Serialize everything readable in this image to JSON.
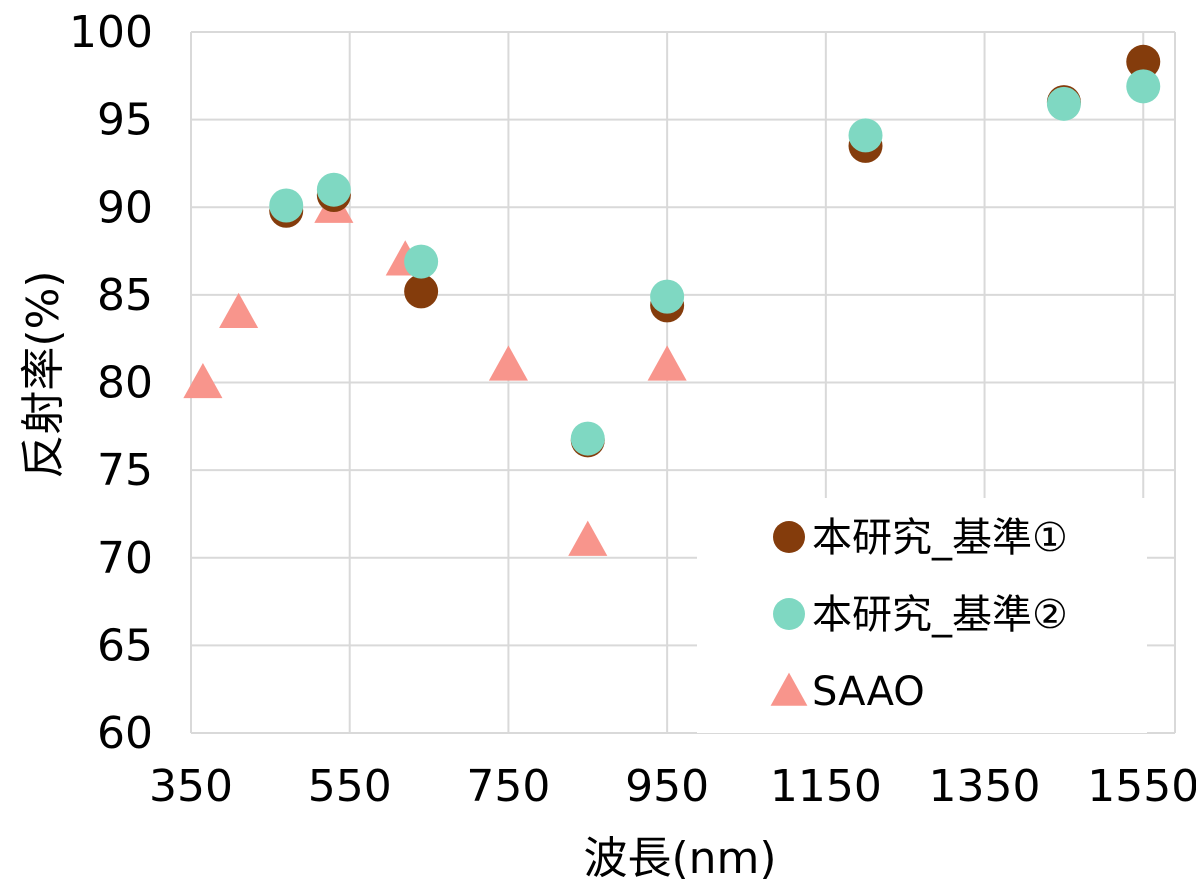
{
  "chart_data": {
    "type": "scatter",
    "title": "",
    "xlabel": "波長(nm)",
    "ylabel": "反射率(%)",
    "xlim": [
      350,
      1590
    ],
    "ylim": [
      60,
      100
    ],
    "xticks": [
      350,
      550,
      750,
      950,
      1150,
      1350,
      1550
    ],
    "yticks": [
      60,
      65,
      70,
      75,
      80,
      85,
      90,
      95,
      100
    ],
    "x_tick_labels": [
      "350",
      "550",
      "750",
      "950",
      "1150",
      "1350",
      "1550"
    ],
    "y_tick_labels": [
      "60",
      "65",
      "70",
      "75",
      "80",
      "85",
      "90",
      "95",
      "100"
    ],
    "grid": true,
    "legend_position": "bottom-right",
    "series": [
      {
        "name": "本研究_基準①",
        "marker": "circle",
        "color": "#843c0c",
        "points": [
          {
            "x": 470,
            "y": 89.8
          },
          {
            "x": 530,
            "y": 90.7
          },
          {
            "x": 640,
            "y": 85.2
          },
          {
            "x": 850,
            "y": 76.7
          },
          {
            "x": 950,
            "y": 84.4
          },
          {
            "x": 1200,
            "y": 93.5
          },
          {
            "x": 1450,
            "y": 96.0
          },
          {
            "x": 1550,
            "y": 98.3
          }
        ]
      },
      {
        "name": "本研究_基準②",
        "marker": "circle",
        "color": "#7fd8c2",
        "points": [
          {
            "x": 470,
            "y": 90.1
          },
          {
            "x": 530,
            "y": 91.0
          },
          {
            "x": 640,
            "y": 86.9
          },
          {
            "x": 850,
            "y": 76.8
          },
          {
            "x": 950,
            "y": 84.9
          },
          {
            "x": 1200,
            "y": 94.1
          },
          {
            "x": 1450,
            "y": 95.9
          },
          {
            "x": 1550,
            "y": 96.9
          }
        ]
      },
      {
        "name": "SAAO",
        "marker": "triangle",
        "color": "#f8958c",
        "points": [
          {
            "x": 365,
            "y": 80
          },
          {
            "x": 410,
            "y": 84
          },
          {
            "x": 530,
            "y": 90
          },
          {
            "x": 620,
            "y": 87
          },
          {
            "x": 750,
            "y": 81
          },
          {
            "x": 850,
            "y": 71
          },
          {
            "x": 950,
            "y": 81
          }
        ]
      }
    ]
  }
}
